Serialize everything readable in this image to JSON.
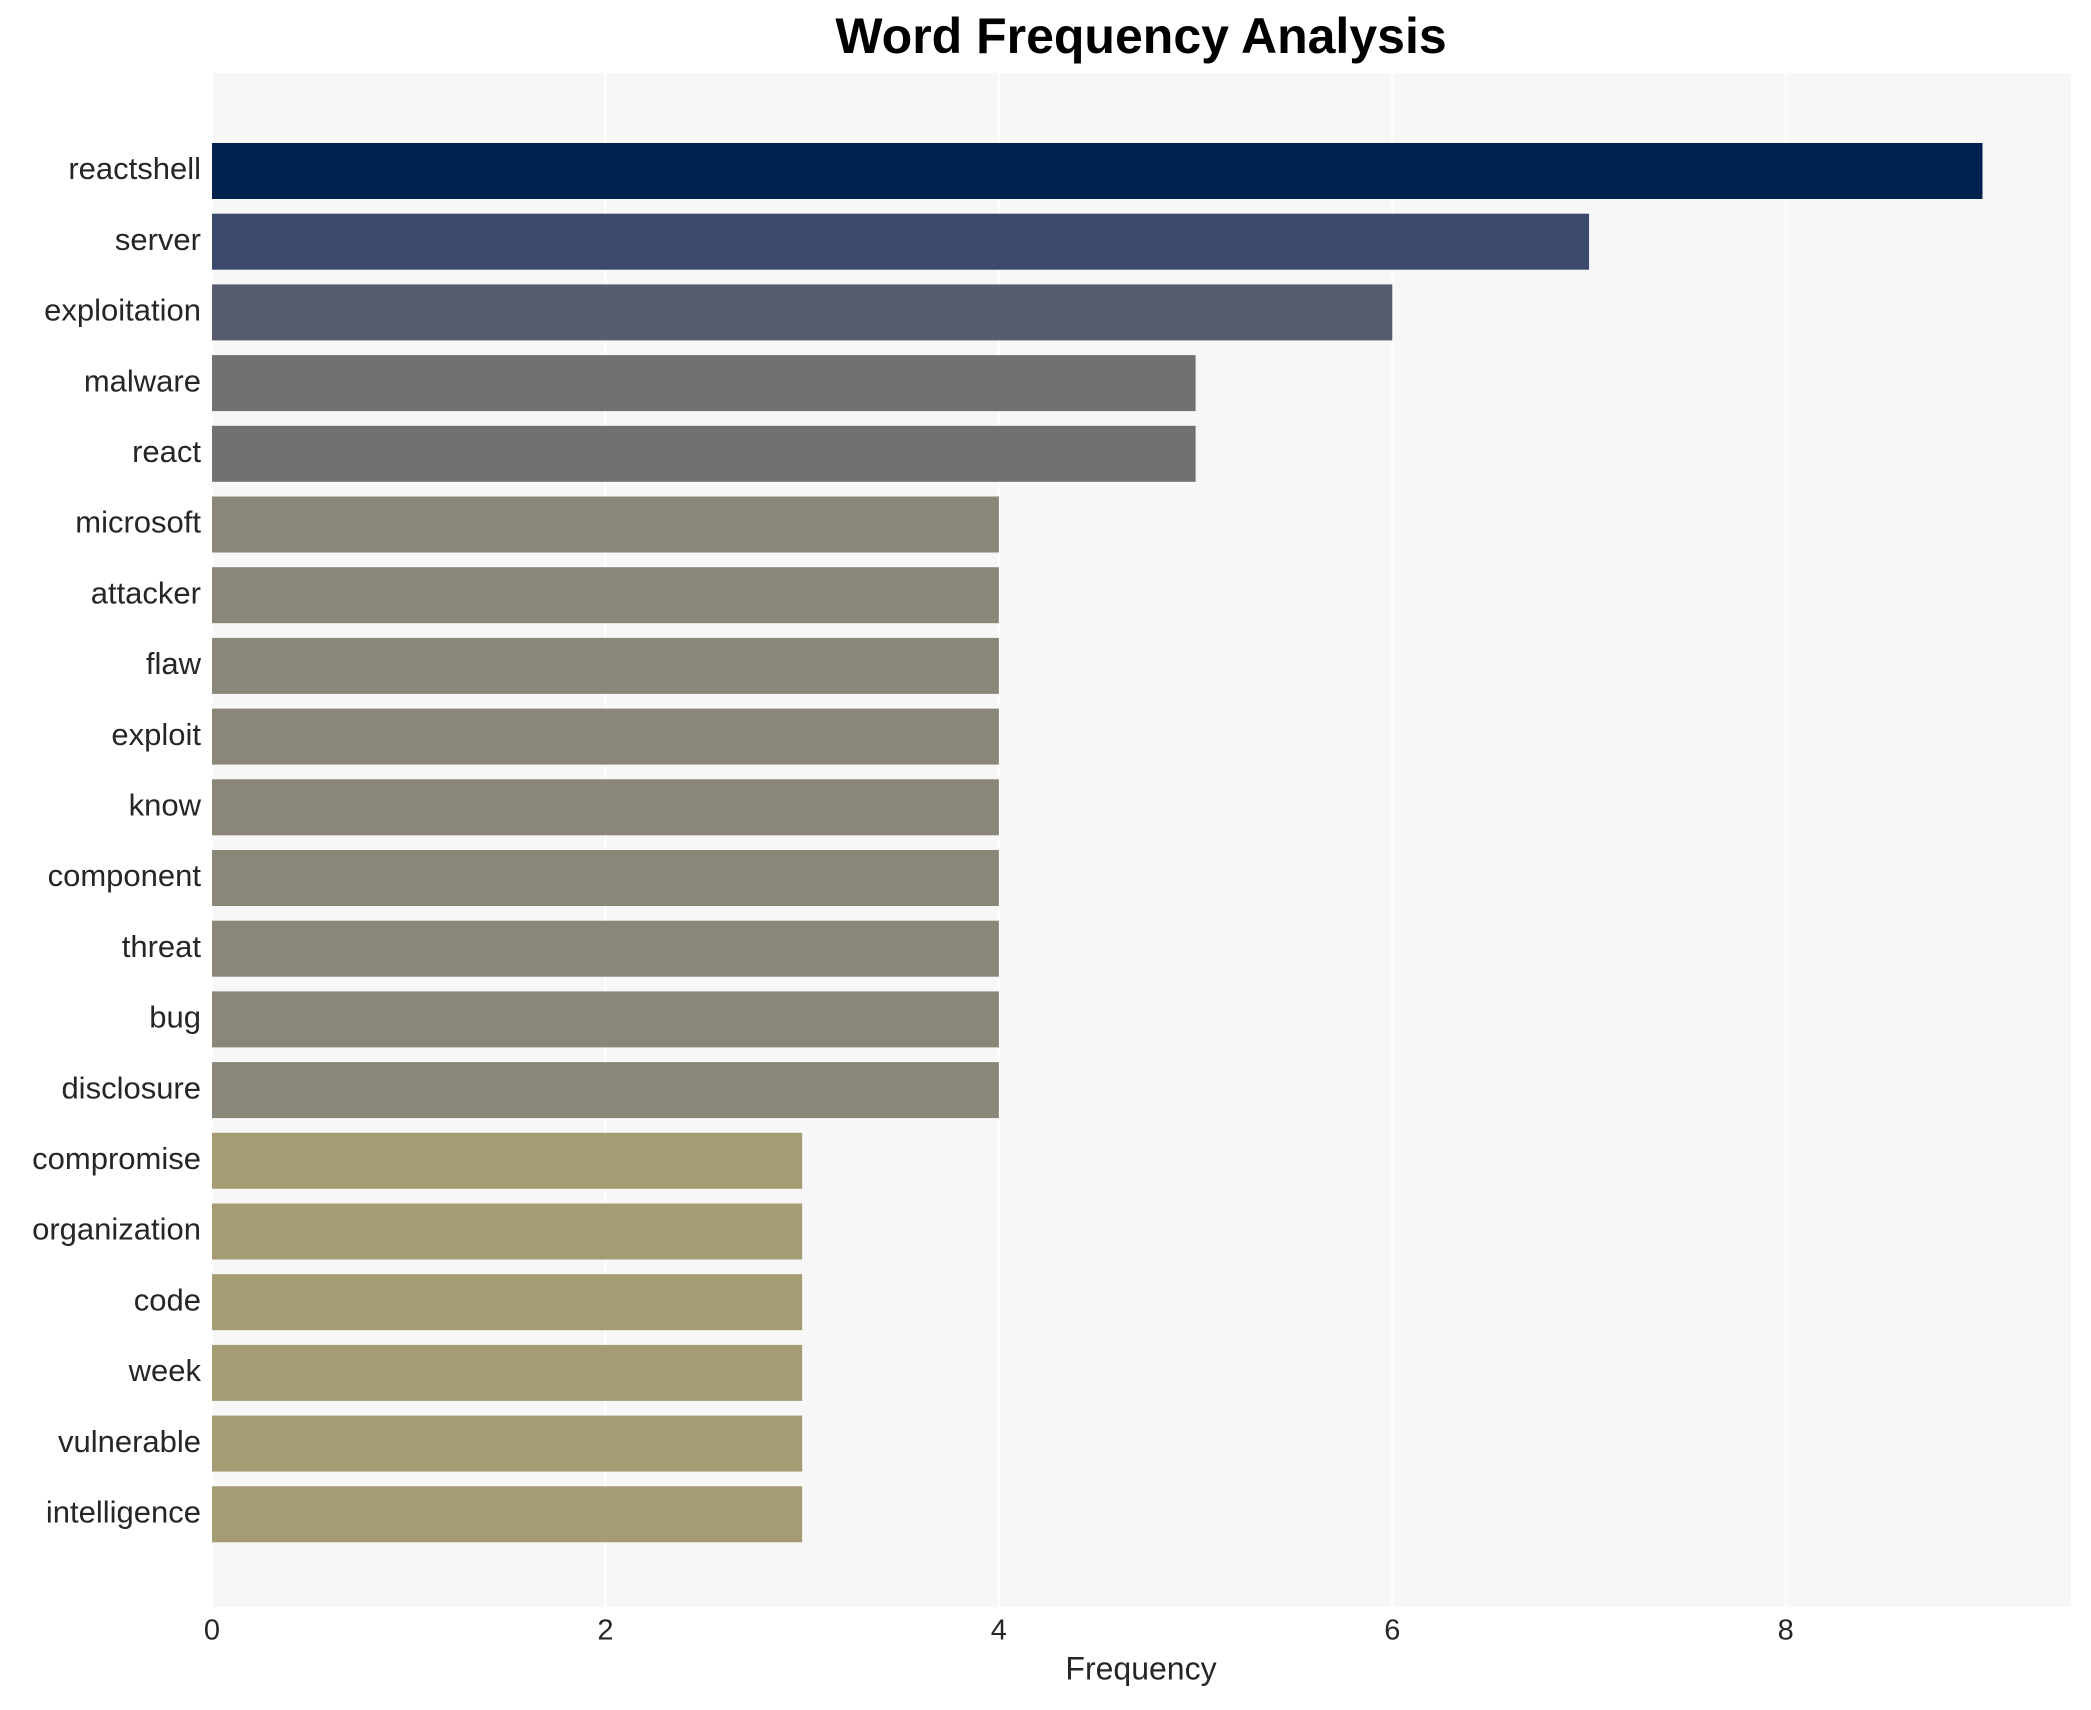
{
  "chart_data": {
    "type": "bar",
    "orientation": "horizontal",
    "title": "Word Frequency Analysis",
    "x_label": "Frequency",
    "categories": [
      "reactshell",
      "server",
      "exploitation",
      "malware",
      "react",
      "microsoft",
      "attacker",
      "flaw",
      "exploit",
      "know",
      "component",
      "threat",
      "bug",
      "disclosure",
      "compromise",
      "organization",
      "code",
      "week",
      "vulnerable",
      "intelligence"
    ],
    "values": [
      9,
      7,
      6,
      5,
      5,
      4,
      4,
      4,
      4,
      4,
      4,
      4,
      4,
      4,
      3,
      3,
      3,
      3,
      3,
      3
    ],
    "colors": [
      "#00224e",
      "#3b496c",
      "#575d6d",
      "#707173",
      "#707173",
      "#8a8779",
      "#8a8779",
      "#8a8779",
      "#8a8779",
      "#8a8779",
      "#8a8779",
      "#8a8779",
      "#8a8779",
      "#8a8779",
      "#a59c74",
      "#a59c74",
      "#a59c74",
      "#a59c74",
      "#a59c74",
      "#a59c74"
    ],
    "xlim": [
      0,
      9.45
    ],
    "xticks": [
      0,
      2,
      4,
      6,
      8
    ],
    "grid": true
  }
}
